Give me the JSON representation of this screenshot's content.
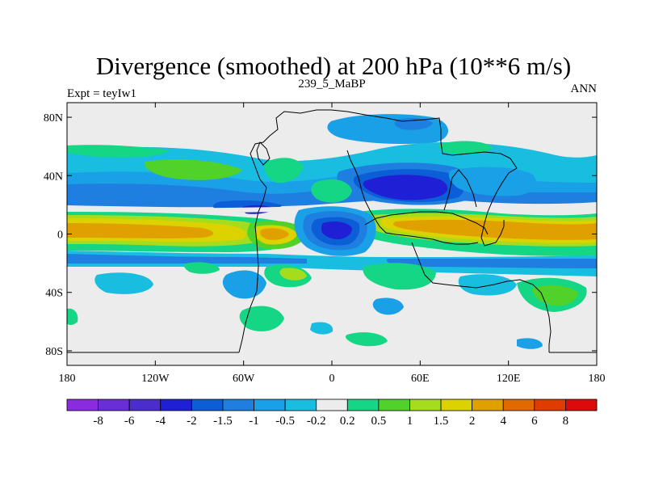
{
  "chart_data": {
    "type": "heatmap",
    "title": "Divergence (smoothed) at 200 hPa (10**6 m/s)",
    "subtitle_left": "Expt = teyIw1",
    "subtitle_center": "239_5_MaBP",
    "subtitle_right": "ANN",
    "xlim": [
      -180,
      180
    ],
    "ylim": [
      -90,
      90
    ],
    "x_ticks": [
      {
        "value": -180,
        "label": "180"
      },
      {
        "value": -120,
        "label": "120W"
      },
      {
        "value": -60,
        "label": "60W"
      },
      {
        "value": 0,
        "label": "0"
      },
      {
        "value": 60,
        "label": "60E"
      },
      {
        "value": 120,
        "label": "120E"
      },
      {
        "value": 180,
        "label": "180"
      }
    ],
    "y_ticks": [
      {
        "value": 80,
        "label": "80N"
      },
      {
        "value": 40,
        "label": "40N"
      },
      {
        "value": 0,
        "label": "0"
      },
      {
        "value": -40,
        "label": "40S"
      },
      {
        "value": -80,
        "label": "80S"
      }
    ],
    "colorbar": {
      "levels": [
        "-8",
        "-6",
        "-4",
        "-2",
        "-1.5",
        "-1",
        "-0.5",
        "-0.2",
        "0.2",
        "0.5",
        "1",
        "1.5",
        "2",
        "4",
        "6",
        "8"
      ],
      "colors": [
        "#8a2be2",
        "#6a2ed8",
        "#4b2ccc",
        "#1f1fd6",
        "#0b5ed6",
        "#1f7fe0",
        "#1aa0e6",
        "#19bde0",
        "#ececec",
        "#14d684",
        "#50d22a",
        "#a6dc1e",
        "#dcd200",
        "#e0a000",
        "#e06a00",
        "#e03c00",
        "#dc0a0a"
      ]
    },
    "background_value_color": "#ececec",
    "features": [
      {
        "name": "equatorial convergence band west",
        "sign": "positive",
        "lon": [
          -180,
          -75
        ],
        "lat": [
          -8,
          10
        ],
        "peak": 2.5
      },
      {
        "name": "equatorial convergence band east",
        "sign": "positive",
        "lon": [
          80,
          180
        ],
        "lat": [
          -5,
          10
        ],
        "peak": 2.5
      },
      {
        "name": "arabian band",
        "sign": "positive",
        "lon": [
          30,
          110
        ],
        "lat": [
          2,
          12
        ],
        "peak": 3
      },
      {
        "name": "atlantic max",
        "sign": "positive",
        "lon": [
          -55,
          -20
        ],
        "lat": [
          -10,
          0
        ],
        "peak": 3
      },
      {
        "name": "central asia convergence",
        "sign": "negative",
        "lon": [
          15,
          75
        ],
        "lat": [
          20,
          35
        ],
        "peak": -3
      },
      {
        "name": "africa convergence",
        "sign": "negative",
        "lon": [
          -10,
          30
        ],
        "lat": [
          -15,
          5
        ],
        "peak": -2.5
      },
      {
        "name": "north pacific jet trough",
        "sign": "negative",
        "lon": [
          -180,
          180
        ],
        "lat": [
          15,
          45
        ],
        "peak": -1
      },
      {
        "name": "southern trough",
        "sign": "negative",
        "lon": [
          -180,
          180
        ],
        "lat": [
          -35,
          -15
        ],
        "peak": -1
      }
    ]
  }
}
